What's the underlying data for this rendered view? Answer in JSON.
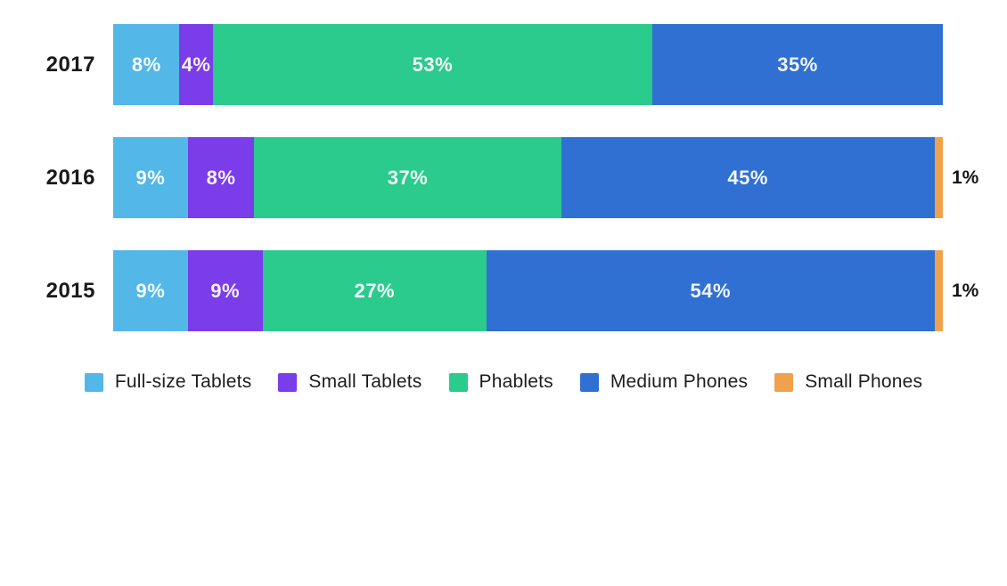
{
  "chart_data": {
    "type": "bar",
    "orientation": "horizontal-stacked",
    "title": "",
    "xlabel": "",
    "ylabel": "",
    "xlim": [
      0,
      100
    ],
    "grid": false,
    "legend_position": "bottom",
    "value_suffix": "%",
    "small_label_threshold": 2,
    "categories": [
      "2017",
      "2016",
      "2015"
    ],
    "series": [
      {
        "name": "Full-size Tablets",
        "color": "#53b7e8",
        "values": [
          8,
          9,
          9
        ]
      },
      {
        "name": "Small Tablets",
        "color": "#7b3ce9",
        "values": [
          4,
          8,
          9
        ]
      },
      {
        "name": "Phablets",
        "color": "#2bca8d",
        "values": [
          53,
          37,
          27
        ]
      },
      {
        "name": "Medium Phones",
        "color": "#3070d3",
        "values": [
          35,
          45,
          54
        ]
      },
      {
        "name": "Small Phones",
        "color": "#f0a14c",
        "values": [
          0,
          1,
          1
        ]
      }
    ],
    "bar_labels": [
      [
        "8%",
        "4%",
        "53%",
        "35%"
      ],
      [
        "9%",
        "8%",
        "37%",
        "45%",
        "1%"
      ],
      [
        "9%",
        "9%",
        "27%",
        "54%",
        "1%"
      ]
    ],
    "legend_entries": [
      "Full-size Tablets",
      "Small Tablets",
      "Phablets",
      "Medium Phones",
      "Small Phones"
    ]
  },
  "colors": {
    "background": "#ffffff",
    "category_text": "#1a1a1a",
    "inside_label_text": "#ffffff",
    "outside_label_text": "#141414",
    "legend_text": "#1d1d1f"
  }
}
